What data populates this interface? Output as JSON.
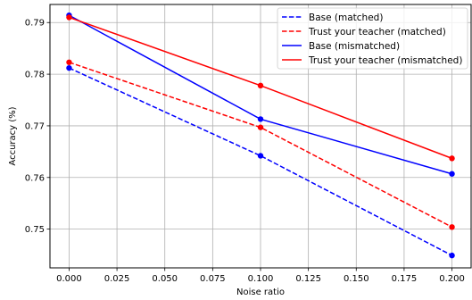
{
  "chart_data": {
    "type": "line",
    "title": "",
    "xlabel": "Noise ratio",
    "ylabel": "Accuracy (%)",
    "xlim": [
      -0.01,
      0.21
    ],
    "ylim": [
      0.7425,
      0.7935
    ],
    "grid": true,
    "legend_position": "top-right",
    "x_ticks": [
      0.0,
      0.025,
      0.05,
      0.075,
      0.1,
      0.125,
      0.15,
      0.175,
      0.2
    ],
    "x_tick_labels": [
      "0.000",
      "0.025",
      "0.050",
      "0.075",
      "0.100",
      "0.125",
      "0.150",
      "0.175",
      "0.200"
    ],
    "y_ticks": [
      0.75,
      0.76,
      0.77,
      0.78,
      0.79
    ],
    "y_tick_labels": [
      "0.75",
      "0.76",
      "0.77",
      "0.78",
      "0.79"
    ],
    "x": [
      0.0,
      0.1,
      0.2
    ],
    "series": [
      {
        "name": "Base (matched)",
        "color": "#0000ff",
        "line_style": "dashed",
        "values": [
          0.7812,
          0.7642,
          0.7449
        ]
      },
      {
        "name": "Trust your teacher (matched)",
        "color": "#ff0000",
        "line_style": "dashed",
        "values": [
          0.7823,
          0.7697,
          0.7504
        ]
      },
      {
        "name": "Base (mismatched)",
        "color": "#0000ff",
        "line_style": "solid",
        "values": [
          0.7914,
          0.7713,
          0.7607
        ]
      },
      {
        "name": "Trust your teacher (mismatched)",
        "color": "#ff0000",
        "line_style": "solid",
        "values": [
          0.791,
          0.7778,
          0.7637
        ]
      }
    ]
  }
}
